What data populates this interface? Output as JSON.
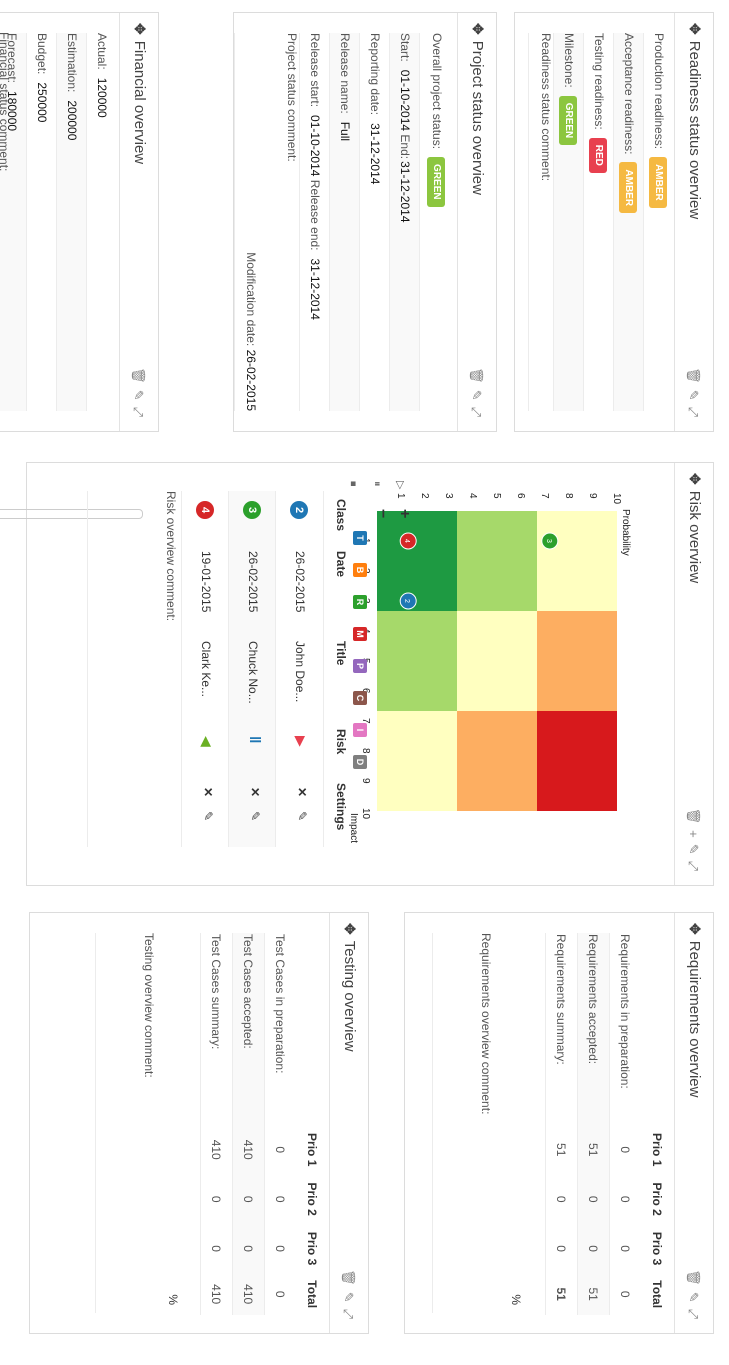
{
  "panels": {
    "readiness": {
      "title": "Readiness status overview",
      "rows": [
        {
          "label": "Production readiness:",
          "status": "AMBER"
        },
        {
          "label": "Acceptance readiness:",
          "status": "AMBER"
        },
        {
          "label": "Testing readiness:",
          "status": "RED"
        },
        {
          "label": "Milestone:",
          "status": "GREEN"
        }
      ],
      "comment_label": "Readiness status comment:"
    },
    "project": {
      "title": "Project status overview",
      "overall_label": "Overall project status:",
      "overall_status": "GREEN",
      "start_label": "Start:",
      "start_value": "01-10-2014",
      "end_label": "End:",
      "end_value": "31-12-2014",
      "reporting_label": "Reporting date:",
      "reporting_value": "31-12-2014",
      "release_name_label": "Release name:",
      "release_name_value": "Full",
      "release_start_label": "Release start:",
      "release_start_value": "01-10-2014",
      "release_end_label": "Release end:",
      "release_end_value": "31-12-2014",
      "comment_label": "Project status comment:",
      "modification_label": "Modification date:",
      "modification_value": "26-02-2015"
    },
    "financial": {
      "title": "Financial overview",
      "rows": [
        {
          "label": "Actual:",
          "value": "120000"
        },
        {
          "label": "Estimation:",
          "value": "200000"
        },
        {
          "label": "Budget:",
          "value": "250000"
        },
        {
          "label": "Forecast:",
          "value": "180000"
        }
      ],
      "comment_label": "Financial status comment:"
    },
    "risk": {
      "title": "Risk overview",
      "x_axis_label": "Impact",
      "y_axis_label": "Probability",
      "x_ticks": [
        "1",
        "2",
        "3",
        "4",
        "5",
        "6",
        "7",
        "8",
        "9",
        "10"
      ],
      "y_ticks": [
        "1",
        "2",
        "3",
        "4",
        "5",
        "6",
        "7",
        "8",
        "9",
        "10"
      ],
      "zone_colors": [
        "#1e9a42",
        "#a6d96a",
        "#ffffc0",
        "#fdae61",
        "#d7191c"
      ],
      "markers": [
        {
          "id": "4",
          "impact": 1,
          "probability": 1.3,
          "color": "#d62728"
        },
        {
          "id": "2",
          "impact": 3,
          "probability": 1.3,
          "color": "#1f77b4"
        },
        {
          "id": "3",
          "impact": 1,
          "probability": 7.2,
          "color": "#2ca02c"
        }
      ],
      "filters": [
        {
          "letter": "T",
          "color": "#1f77b4"
        },
        {
          "letter": "B",
          "color": "#ff7f0e"
        },
        {
          "letter": "R",
          "color": "#2ca02c"
        },
        {
          "letter": "M",
          "color": "#d62728"
        },
        {
          "letter": "P",
          "color": "#9467bd"
        },
        {
          "letter": "C",
          "color": "#8c564b"
        },
        {
          "letter": "I",
          "color": "#e377c2"
        },
        {
          "letter": "D",
          "color": "#7f7f7f"
        }
      ],
      "zoom_in": "+",
      "zoom_out": "−",
      "columns": [
        "Class",
        "Date",
        "Title",
        "Risk",
        "Settings"
      ],
      "rows": [
        {
          "class": "2",
          "class_color": "#1f77b4",
          "date": "26-02-2015",
          "title": "John Doe...",
          "risk_icon": "triangle-red-icon"
        },
        {
          "class": "3",
          "class_color": "#2ca02c",
          "date": "26-02-2015",
          "title": "Chuck No...",
          "risk_icon": "pause-blue-icon"
        },
        {
          "class": "4",
          "class_color": "#d62728",
          "date": "19-01-2015",
          "title": "Clark Ke...",
          "risk_icon": "triangle-green-icon"
        }
      ],
      "comment_label": "Risk overview comment:"
    },
    "requirements": {
      "title": "Requirements overview",
      "columns": [
        "",
        "Prio 1",
        "Prio 2",
        "Prio 3",
        "Total"
      ],
      "rows": [
        {
          "label": "Requirements in preparation:",
          "p1": "0",
          "p2": "0",
          "p3": "0",
          "total": "0"
        },
        {
          "label": "Requirements accepted:",
          "p1": "51",
          "p2": "0",
          "p3": "0",
          "total": "51"
        },
        {
          "label": "Requirements summary:",
          "p1": "51",
          "p2": "0",
          "p3": "0",
          "total": "51"
        }
      ],
      "percent": "%",
      "comment_label": "Requirements overview comment:"
    },
    "testing": {
      "title": "Testing overview",
      "columns": [
        "",
        "Prio 1",
        "Prio 2",
        "Prio 3",
        "Total"
      ],
      "rows": [
        {
          "label": "Test Cases in preparation:",
          "p1": "0",
          "p2": "0",
          "p3": "0",
          "total": "0"
        },
        {
          "label": "Test Cases accepted:",
          "p1": "410",
          "p2": "0",
          "p3": "0",
          "total": "410"
        },
        {
          "label": "Test Cases summary:",
          "p1": "410",
          "p2": "0",
          "p3": "0",
          "total": "410"
        }
      ],
      "percent": "%",
      "comment_label": "Testing overview comment:"
    }
  }
}
